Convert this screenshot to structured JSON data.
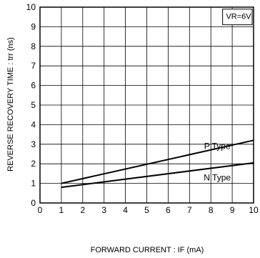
{
  "chart_data": {
    "type": "line",
    "xlabel": "FORWARD  CURRENT : IF (mA)",
    "ylabel": "REVERSE  RECOVERY  TIME : trr (ns)",
    "xlim": [
      0,
      10
    ],
    "ylim": [
      0,
      10
    ],
    "x_ticks": [
      0,
      1,
      2,
      3,
      4,
      5,
      6,
      7,
      8,
      9,
      10
    ],
    "y_ticks": [
      0,
      1,
      2,
      3,
      4,
      5,
      6,
      7,
      8,
      9,
      10
    ],
    "grid": true,
    "condition_label": "VR=6V",
    "series": [
      {
        "name": "P Type",
        "x": [
          1,
          10
        ],
        "y": [
          1.0,
          3.2
        ]
      },
      {
        "name": "N Type",
        "x": [
          1,
          10
        ],
        "y": [
          0.8,
          2.05
        ]
      }
    ]
  }
}
